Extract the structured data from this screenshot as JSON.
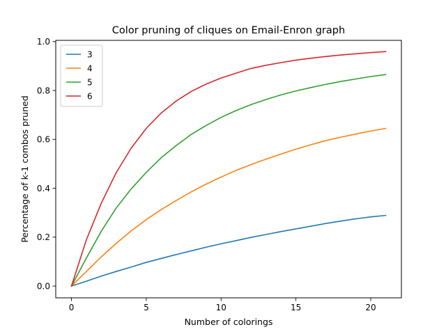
{
  "chart_data": {
    "type": "line",
    "title": "Color pruning of cliques on Email-Enron graph",
    "xlabel": "Number of colorings",
    "ylabel": "Percentage of k-1 combos pruned",
    "xlim": [
      -1.05,
      22.05
    ],
    "ylim": [
      -0.048,
      1.005
    ],
    "xticks": [
      0,
      5,
      10,
      15,
      20
    ],
    "yticks": [
      0.0,
      0.2,
      0.4,
      0.6,
      0.8,
      1.0
    ],
    "xtick_labels": [
      "0",
      "5",
      "10",
      "15",
      "20"
    ],
    "ytick_labels": [
      "0.0",
      "0.2",
      "0.4",
      "0.6",
      "0.8",
      "1.0"
    ],
    "grid": false,
    "legend_position": "top-left",
    "x": [
      0,
      1,
      2,
      3,
      4,
      5,
      6,
      7,
      8,
      9,
      10,
      11,
      12,
      13,
      14,
      15,
      16,
      17,
      18,
      19,
      20,
      21
    ],
    "series": [
      {
        "name": "3",
        "color": "#1f77b4",
        "values": [
          0.0,
          0.02,
          0.041,
          0.06,
          0.078,
          0.097,
          0.113,
          0.129,
          0.144,
          0.159,
          0.173,
          0.186,
          0.199,
          0.211,
          0.223,
          0.234,
          0.245,
          0.256,
          0.266,
          0.275,
          0.283,
          0.289
        ]
      },
      {
        "name": "4",
        "color": "#ff7f0e",
        "values": [
          0.0,
          0.06,
          0.12,
          0.175,
          0.226,
          0.272,
          0.313,
          0.35,
          0.385,
          0.417,
          0.446,
          0.473,
          0.497,
          0.519,
          0.54,
          0.56,
          0.578,
          0.595,
          0.609,
          0.622,
          0.634,
          0.645
        ]
      },
      {
        "name": "5",
        "color": "#2ca02c",
        "values": [
          0.0,
          0.115,
          0.225,
          0.32,
          0.398,
          0.465,
          0.525,
          0.575,
          0.62,
          0.657,
          0.69,
          0.718,
          0.742,
          0.763,
          0.782,
          0.798,
          0.812,
          0.825,
          0.837,
          0.847,
          0.857,
          0.865
        ]
      },
      {
        "name": "6",
        "color": "#d62728",
        "values": [
          0.0,
          0.19,
          0.34,
          0.465,
          0.565,
          0.645,
          0.708,
          0.757,
          0.796,
          0.826,
          0.851,
          0.871,
          0.89,
          0.903,
          0.914,
          0.924,
          0.932,
          0.939,
          0.945,
          0.95,
          0.955,
          0.959
        ]
      }
    ]
  }
}
